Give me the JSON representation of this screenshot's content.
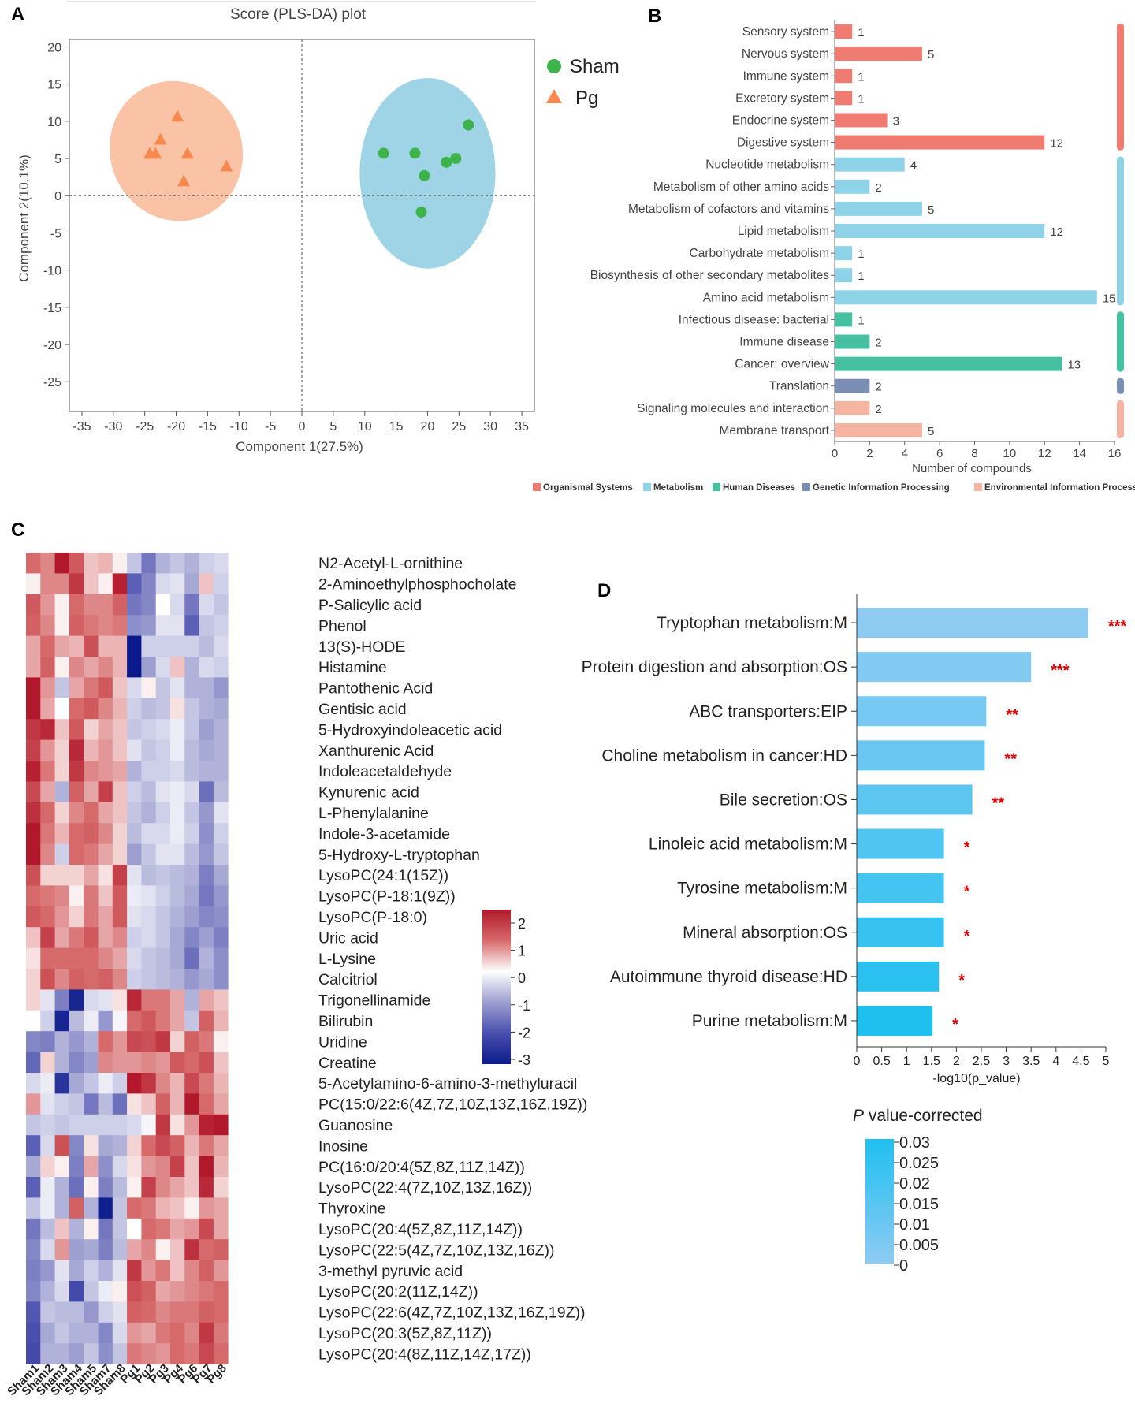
{
  "panels": {
    "a": "A",
    "b": "B",
    "c": "C",
    "d": "D"
  },
  "chart_data": [
    {
      "type": "scatter",
      "panel": "A",
      "title": "Score (PLS-DA) plot",
      "xlabel": "Component 1(27.5%)",
      "ylabel": "Component 2(10.1%)",
      "xlim": [
        -37,
        37
      ],
      "ylim": [
        -29,
        21
      ],
      "xticks": [
        -35,
        -30,
        -25,
        -20,
        -15,
        -10,
        -5,
        0,
        5,
        10,
        15,
        20,
        25,
        30,
        35
      ],
      "yticks": [
        20,
        15,
        10,
        5,
        0,
        -5,
        -10,
        -15,
        -20,
        -25
      ],
      "series": [
        {
          "name": "Sham",
          "color": "#3cb44b",
          "marker": "circle",
          "ellipse": {
            "cx": 20,
            "cy": 3,
            "rx": 10.8,
            "ry": 12.8,
            "color": "#8ecde3"
          },
          "points": [
            [
              13,
              5.7
            ],
            [
              18,
              5.7
            ],
            [
              19.5,
              2.7
            ],
            [
              23,
              4.5
            ],
            [
              24.5,
              5
            ],
            [
              26.5,
              9.5
            ],
            [
              19,
              -2.2
            ]
          ]
        },
        {
          "name": "Pg",
          "color": "#f7894f",
          "marker": "triangle",
          "ellipse": {
            "cx": -20,
            "cy": 6,
            "rx": 10.5,
            "ry": 9.5,
            "color": "#f9b996"
          },
          "points": [
            [
              -19.8,
              10.7
            ],
            [
              -22.5,
              7.6
            ],
            [
              -24.2,
              5.7
            ],
            [
              -23.3,
              5.7
            ],
            [
              -18.2,
              5.7
            ],
            [
              -12,
              4
            ],
            [
              -18.8,
              2
            ]
          ]
        }
      ]
    },
    {
      "type": "bar",
      "panel": "B",
      "orientation": "horizontal",
      "xlabel": "Number of compounds",
      "xlim": [
        0,
        16
      ],
      "xticks": [
        0,
        2,
        4,
        6,
        8,
        10,
        12,
        14,
        16
      ],
      "categories": [
        "Sensory system",
        "Nervous system",
        "Immune system",
        "Excretory system",
        "Endocrine system",
        "Digestive system",
        "Nucleotide metabolism",
        "Metabolism of other amino acids",
        "Metabolism of cofactors and vitamins",
        "Lipid metabolism",
        "Carbohydrate metabolism",
        "Biosynthesis of other secondary metabolites",
        "Amino acid metabolism",
        "Infectious disease: bacterial",
        "Immune disease",
        "Cancer: overview",
        "Translation",
        "Signaling molecules and interaction",
        "Membrane transport"
      ],
      "values": [
        1,
        5,
        1,
        1,
        3,
        12,
        4,
        2,
        5,
        12,
        1,
        1,
        15,
        1,
        2,
        13,
        2,
        2,
        5
      ],
      "group_index": [
        0,
        0,
        0,
        0,
        0,
        0,
        1,
        1,
        1,
        1,
        1,
        1,
        1,
        2,
        2,
        2,
        3,
        4,
        4
      ],
      "groups": [
        {
          "name": "Organismal Systems",
          "color": "#f07b70"
        },
        {
          "name": "Metabolism",
          "color": "#8fd3e8"
        },
        {
          "name": "Human Diseases",
          "color": "#45c0a0"
        },
        {
          "name": "Genetic Information Processing",
          "color": "#7b8fb5"
        },
        {
          "name": "Environmental Information Processing",
          "color": "#f6b5a2"
        }
      ]
    },
    {
      "type": "heatmap",
      "panel": "C",
      "columns": [
        "Sham1",
        "Sham2",
        "Sham3",
        "Sham4",
        "Sham5",
        "Sham7",
        "Sham8",
        "Pg1",
        "Pg2",
        "Pg3",
        "Pg4",
        "Pg6",
        "Pg7",
        "Pg8"
      ],
      "rows": [
        "N2-Acetyl-L-ornithine",
        "2-Aminoethylphosphocholate",
        "P-Salicylic acid",
        "Phenol",
        "13(S)-HODE",
        "Histamine",
        "Pantothenic Acid",
        "Gentisic acid",
        "5-Hydroxyindoleacetic acid",
        "Xanthurenic Acid",
        "Indoleacetaldehyde",
        "Kynurenic acid",
        "L-Phenylalanine",
        "Indole-3-acetamide",
        "5-Hydroxy-L-tryptophan",
        "LysoPC(24:1(15Z))",
        "LysoPC(P-18:1(9Z))",
        "LysoPC(P-18:0)",
        "Uric acid",
        "L-Lysine",
        "Calcitriol",
        "Trigonellinamide",
        "Bilirubin",
        "Uridine",
        "Creatine",
        "5-Acetylamino-6-amino-3-methyluracil",
        "PC(15:0/22:6(4Z,7Z,10Z,13Z,16Z,19Z))",
        "Guanosine",
        "Inosine",
        "PC(16:0/20:4(5Z,8Z,11Z,14Z))",
        "LysoPC(22:4(7Z,10Z,13Z,16Z))",
        "Thyroxine",
        "LysoPC(20:4(5Z,8Z,11Z,14Z))",
        "LysoPC(22:5(4Z,7Z,10Z,13Z,16Z))",
        "3-methyl pyruvic acid",
        "LysoPC(20:2(11Z,14Z))",
        "LysoPC(22:6(4Z,7Z,10Z,13Z,16Z,19Z))",
        "LysoPC(20:3(5Z,8Z,11Z))",
        "LysoPC(20:4(8Z,11Z,14Z,17Z))"
      ],
      "values": [
        [
          1.0,
          0.8,
          2.4,
          1.2,
          0.4,
          0.5,
          0.1,
          -0.6,
          -1.5,
          -0.8,
          -0.6,
          -0.8,
          -0.5,
          -0.4
        ],
        [
          0.1,
          0.8,
          0.8,
          1.6,
          0.4,
          0.1,
          1.9,
          -1.8,
          -1.3,
          -0.4,
          -0.3,
          -0.9,
          0.4,
          -0.5
        ],
        [
          1.2,
          0.7,
          0.1,
          1.0,
          0.8,
          0.8,
          1.1,
          -1.5,
          -1.3,
          0.0,
          -0.4,
          -1.5,
          -0.4,
          -0.6
        ],
        [
          1.1,
          0.8,
          0.1,
          1.1,
          0.9,
          0.8,
          0.9,
          -1.2,
          -1.1,
          -0.3,
          -0.3,
          -1.8,
          -0.6,
          -0.5
        ],
        [
          0.6,
          1.0,
          0.6,
          0.5,
          1.3,
          0.5,
          0.5,
          -3.0,
          -0.5,
          -0.5,
          -0.5,
          -0.5,
          -0.7,
          -0.4
        ],
        [
          0.6,
          1.1,
          0.1,
          0.8,
          0.6,
          0.8,
          0.5,
          -3.0,
          -1.0,
          -0.4,
          0.4,
          -0.8,
          -0.4,
          -0.5
        ],
        [
          2.0,
          0.7,
          -0.6,
          0.6,
          0.9,
          1.2,
          0.4,
          -0.4,
          0.1,
          -0.6,
          -0.3,
          -0.8,
          -0.8,
          -1.1
        ],
        [
          2.2,
          0.6,
          0.0,
          1.0,
          1.2,
          0.8,
          0.5,
          -0.5,
          -0.7,
          -0.6,
          0.2,
          -0.6,
          -0.8,
          -0.9
        ],
        [
          1.6,
          1.8,
          0.4,
          1.2,
          0.3,
          0.6,
          0.4,
          -0.6,
          -0.5,
          -0.4,
          -0.2,
          -0.6,
          -1.0,
          -0.8
        ],
        [
          1.5,
          0.7,
          0.3,
          1.8,
          0.5,
          0.7,
          0.4,
          -0.3,
          -0.6,
          -0.5,
          -0.2,
          -0.7,
          -0.9,
          -0.8
        ],
        [
          1.9,
          0.9,
          0.3,
          1.6,
          0.8,
          0.7,
          0.6,
          -0.8,
          -0.5,
          -0.5,
          -0.4,
          -0.7,
          -0.8,
          -0.8
        ],
        [
          1.4,
          0.6,
          -0.8,
          1.1,
          0.6,
          1.5,
          0.4,
          -0.5,
          -0.7,
          -0.3,
          -0.2,
          -0.4,
          -1.6,
          -0.7
        ],
        [
          1.7,
          1.0,
          0.3,
          0.8,
          1.0,
          0.6,
          0.4,
          -0.6,
          -0.8,
          -0.5,
          -0.2,
          -0.6,
          -1.1,
          -0.3
        ],
        [
          2.3,
          0.9,
          0.5,
          1.0,
          1.1,
          0.8,
          0.3,
          -0.7,
          -0.4,
          -0.4,
          -0.2,
          -0.5,
          -1.2,
          -0.5
        ],
        [
          2.2,
          0.8,
          -0.5,
          1.0,
          0.9,
          0.6,
          0.3,
          -1.0,
          -0.6,
          -0.3,
          -0.3,
          -0.7,
          -1.1,
          -0.6
        ],
        [
          1.3,
          0.3,
          0.3,
          0.3,
          0.6,
          0.2,
          1.5,
          -0.3,
          -0.7,
          -0.6,
          -0.7,
          -0.8,
          -1.4,
          -0.9
        ],
        [
          1.0,
          0.9,
          0.8,
          0.1,
          0.9,
          0.4,
          1.2,
          -0.2,
          -0.3,
          -0.5,
          -0.7,
          -0.9,
          -1.5,
          -1.1
        ],
        [
          1.2,
          1.0,
          0.7,
          0.3,
          0.9,
          0.6,
          1.2,
          -0.3,
          -0.4,
          -0.6,
          -0.8,
          -1.0,
          -1.3,
          -1.2
        ],
        [
          0.4,
          1.5,
          0.6,
          0.9,
          1.2,
          0.6,
          0.8,
          -0.5,
          -0.4,
          -0.6,
          -0.9,
          -1.3,
          -1.0,
          -1.4
        ],
        [
          0.2,
          1.0,
          1.0,
          1.0,
          1.0,
          0.8,
          0.6,
          -0.4,
          -0.6,
          -0.7,
          -0.9,
          -1.6,
          -0.8,
          -1.2
        ],
        [
          0.3,
          1.3,
          0.8,
          1.1,
          1.0,
          1.1,
          0.8,
          -0.5,
          -0.6,
          -0.7,
          -0.8,
          -1.1,
          -0.9,
          -1.2
        ],
        [
          0.3,
          -0.3,
          -1.4,
          -2.8,
          -0.4,
          -0.3,
          0.2,
          1.8,
          0.9,
          0.9,
          0.6,
          -0.8,
          0.6,
          0.4
        ],
        [
          0.0,
          -0.5,
          -2.8,
          -0.7,
          -0.2,
          -1.1,
          -0.1,
          1.0,
          1.2,
          0.9,
          0.6,
          -0.6,
          1.1,
          0.5
        ],
        [
          -1.3,
          -1.4,
          -0.8,
          -1.1,
          -0.8,
          1.0,
          0.7,
          1.4,
          1.3,
          1.6,
          0.3,
          1.1,
          0.9,
          0.1
        ],
        [
          -1.7,
          0.3,
          -0.8,
          -1.3,
          -1.0,
          0.8,
          0.7,
          0.7,
          0.8,
          0.7,
          1.2,
          1.0,
          1.3,
          0.4
        ],
        [
          -0.4,
          -0.2,
          -2.5,
          -0.9,
          -0.6,
          -0.2,
          -0.5,
          2.0,
          1.6,
          0.8,
          0.5,
          1.4,
          0.9,
          0.5
        ],
        [
          0.7,
          -0.3,
          -0.5,
          -0.6,
          -1.5,
          -0.7,
          -1.6,
          0.2,
          0.4,
          1.1,
          0.5,
          2.3,
          1.0,
          0.6
        ],
        [
          -0.6,
          -0.5,
          -0.6,
          -0.5,
          -0.5,
          -0.5,
          -0.5,
          -0.4,
          -0.1,
          1.6,
          0.2,
          0.7,
          1.9,
          2.6
        ],
        [
          -1.8,
          -0.4,
          1.3,
          -1.3,
          0.2,
          -0.9,
          -0.8,
          0.3,
          1.0,
          1.4,
          1.1,
          0.5,
          0.9,
          0.6
        ],
        [
          -0.9,
          0.3,
          0.1,
          -1.4,
          0.6,
          -1.2,
          -0.4,
          0.2,
          0.7,
          0.8,
          1.5,
          0.4,
          2.2,
          0.5
        ],
        [
          -1.8,
          -0.2,
          -0.8,
          -1.6,
          0.1,
          -1.4,
          -0.7,
          0.1,
          1.5,
          0.8,
          0.6,
          0.4,
          1.8,
          0.3
        ],
        [
          -0.6,
          -0.2,
          -0.8,
          1.1,
          -0.8,
          -2.9,
          -0.6,
          1.0,
          0.9,
          0.5,
          0.4,
          0.1,
          0.7,
          0.6
        ],
        [
          -1.5,
          -0.7,
          0.4,
          -0.8,
          0.1,
          -1.5,
          -0.6,
          0.0,
          1.0,
          0.9,
          0.6,
          0.7,
          1.4,
          0.6
        ],
        [
          -1.3,
          -0.4,
          0.7,
          -1.0,
          -0.9,
          -1.4,
          -0.7,
          0.6,
          0.8,
          0.1,
          0.4,
          1.7,
          1.0,
          1.1
        ],
        [
          -1.4,
          -1.1,
          -0.3,
          -0.9,
          -0.5,
          -0.8,
          -0.3,
          1.6,
          0.7,
          0.9,
          0.4,
          0.8,
          1.1,
          0.7
        ],
        [
          -1.3,
          -0.8,
          -0.4,
          -2.1,
          -0.6,
          -0.2,
          0.1,
          1.3,
          1.1,
          0.6,
          0.7,
          0.8,
          0.9,
          1.0
        ],
        [
          -1.9,
          -0.6,
          -0.7,
          -0.7,
          -1.1,
          -0.5,
          -0.3,
          1.1,
          1.0,
          0.8,
          0.9,
          0.9,
          1.1,
          1.0
        ],
        [
          -2.0,
          -0.9,
          -0.6,
          -0.8,
          -0.8,
          -1.3,
          -0.4,
          0.7,
          0.6,
          0.9,
          1.0,
          0.8,
          1.6,
          0.9
        ],
        [
          -2.1,
          -0.8,
          -0.8,
          -1.0,
          -0.6,
          -1.2,
          -0.6,
          0.9,
          0.8,
          0.7,
          1.0,
          0.9,
          1.4,
          1.0
        ]
      ],
      "color_scale": {
        "min": -3,
        "max": 2,
        "ticks": [
          2,
          1,
          0,
          -1,
          -2,
          -3
        ]
      }
    },
    {
      "type": "bar",
      "panel": "D",
      "orientation": "horizontal",
      "xlabel": "-log10(p_value)",
      "xlim": [
        0,
        5
      ],
      "xticks": [
        "0",
        "0.5",
        "1",
        "1.5",
        "2",
        "2.5",
        "3",
        "3.5",
        "4",
        "4.5",
        "5"
      ],
      "categories": [
        "Tryptophan metabolism:M",
        "Protein digestion and absorption:OS",
        "ABC transporters:EIP",
        "Choline metabolism in cancer:HD",
        "Bile secretion:OS",
        "Linoleic acid metabolism:M",
        "Tyrosine metabolism:M",
        "Mineral absorption:OS",
        "Autoimmune thyroid disease:HD",
        "Purine metabolism:M"
      ],
      "values": [
        4.65,
        3.5,
        2.6,
        2.57,
        2.32,
        1.75,
        1.75,
        1.75,
        1.65,
        1.52
      ],
      "significance": [
        "***",
        "***",
        "**",
        "**",
        "**",
        "*",
        "*",
        "*",
        "*",
        "*"
      ],
      "legend_title": "P value-corrected",
      "legend_title_italic": "P",
      "legend_title_rest": " value-corrected",
      "legend_ticks": [
        "0.03",
        "0.025",
        "0.02",
        "0.015",
        "0.01",
        "0.005",
        "0"
      ],
      "colors": [
        "#8ecbf2",
        "#1ec0f0"
      ]
    }
  ]
}
